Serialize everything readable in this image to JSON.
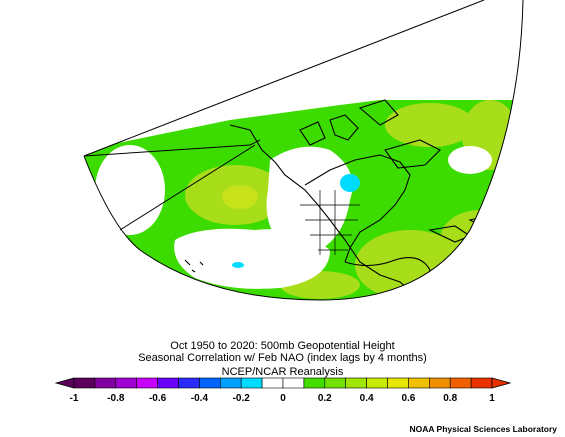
{
  "title": {
    "line1": "Oct 1950 to 2020: 500mb Geopotential Height",
    "line2": "Seasonal Correlation w/ Feb NAO (index lags by 4 months)",
    "line3": "NCEP/NCAR Reanalysis"
  },
  "colorbar": {
    "tick_labels": [
      "-1",
      "-0.8",
      "-0.6",
      "-0.4",
      "-0.2",
      "0",
      "0.2",
      "0.4",
      "0.6",
      "0.8",
      "1"
    ],
    "colors": [
      "#5a005a",
      "#8000a0",
      "#a000d2",
      "#c800ff",
      "#6a00ff",
      "#2a2aff",
      "#0064ff",
      "#00a0ff",
      "#00dcff",
      "#ffffff",
      "#ffffff",
      "#44dd00",
      "#72e000",
      "#a0e600",
      "#c8eb00",
      "#e6e600",
      "#f0c000",
      "#f09000",
      "#f06000",
      "#e83000"
    ],
    "colors_meaning": "diverging palette: purple/blue = negative correlation, white = near zero, green/yellow/orange/red = positive correlation"
  },
  "credit": "NOAA Physical Sciences Laboratory",
  "map": {
    "projection": "Lambert conic sector over North America / North Atlantic",
    "land_fill": "#ffffff",
    "colors": {
      "low_positive": "#3ddc00",
      "mid_positive": "#a8dd1a",
      "near_zero": "#ffffff",
      "weak_negative": "#00dcff"
    }
  }
}
